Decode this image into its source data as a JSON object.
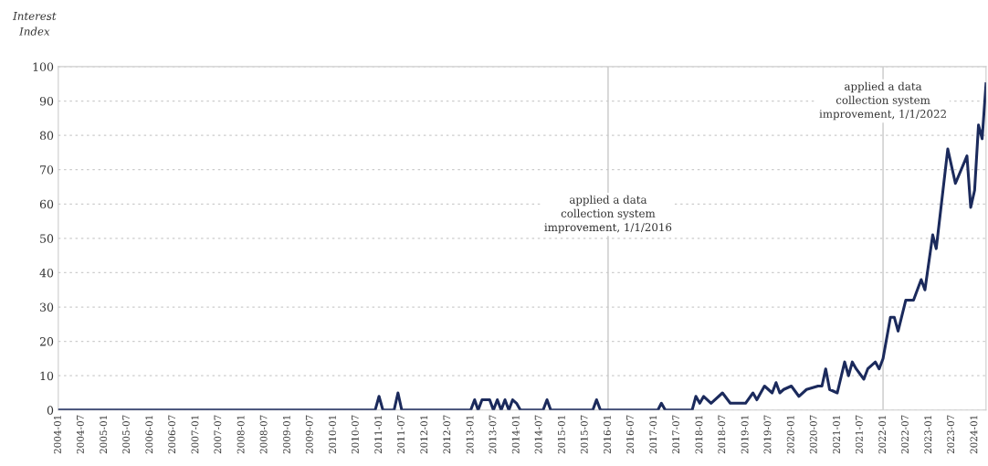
{
  "chart_data": {
    "type": "line",
    "ylabel": "Interest\nIndex",
    "x": [
      "2004-01",
      "2010-12",
      "2011-01",
      "2011-02",
      "2011-05",
      "2011-06",
      "2011-07",
      "2013-01",
      "2013-02",
      "2013-03",
      "2013-04",
      "2013-06",
      "2013-07",
      "2013-08",
      "2013-09",
      "2013-10",
      "2013-11",
      "2013-12",
      "2014-01",
      "2014-02",
      "2014-08",
      "2014-09",
      "2014-10",
      "2015-09",
      "2015-10",
      "2015-11",
      "2017-02",
      "2017-03",
      "2017-04",
      "2017-11",
      "2017-12",
      "2018-01",
      "2018-02",
      "2018-04",
      "2018-07",
      "2018-09",
      "2019-01",
      "2019-03",
      "2019-04",
      "2019-06",
      "2019-08",
      "2019-09",
      "2019-10",
      "2019-11",
      "2020-01",
      "2020-03",
      "2020-05",
      "2020-08",
      "2020-09",
      "2020-10",
      "2020-11",
      "2021-01",
      "2021-03",
      "2021-04",
      "2021-05",
      "2021-06",
      "2021-08",
      "2021-09",
      "2021-11",
      "2021-12",
      "2022-01",
      "2022-03",
      "2022-04",
      "2022-05",
      "2022-07",
      "2022-09",
      "2022-11",
      "2022-12",
      "2023-02",
      "2023-03",
      "2023-06",
      "2023-08",
      "2023-11",
      "2023-12",
      "2024-01",
      "2024-02",
      "2024-03",
      "2024-04"
    ],
    "series": [
      {
        "color": "#1b2a5c",
        "values": [
          0,
          0,
          4,
          0,
          0,
          5,
          0,
          0,
          3,
          0,
          3,
          3,
          0,
          3,
          0,
          3,
          0,
          3,
          2,
          0,
          0,
          3,
          0,
          0,
          3,
          0,
          0,
          2,
          0,
          0,
          4,
          2,
          4,
          2,
          5,
          2,
          2,
          5,
          3,
          7,
          5,
          8,
          5,
          6,
          7,
          4,
          6,
          7,
          7,
          12,
          6,
          5,
          14,
          10,
          14,
          12,
          9,
          12,
          14,
          12,
          15,
          27,
          27,
          23,
          32,
          32,
          38,
          35,
          51,
          47,
          76,
          66,
          74,
          59,
          64,
          83,
          79,
          95
        ]
      }
    ],
    "xlim": [
      "2004-01",
      "2024-04"
    ],
    "xticks": [
      "2004-01",
      "2004-07",
      "2005-01",
      "2005-07",
      "2006-01",
      "2006-07",
      "2007-01",
      "2007-07",
      "2008-01",
      "2008-07",
      "2009-01",
      "2009-07",
      "2010-01",
      "2010-07",
      "2011-01",
      "2011-07",
      "2012-01",
      "2012-07",
      "2013-01",
      "2013-07",
      "2014-01",
      "2014-07",
      "2015-01",
      "2015-07",
      "2016-01",
      "2016-07",
      "2017-01",
      "2017-07",
      "2018-01",
      "2018-07",
      "2019-01",
      "2019-07",
      "2020-01",
      "2020-07",
      "2021-01",
      "2021-07",
      "2022-01",
      "2022-07",
      "2023-01",
      "2023-07",
      "2024-01"
    ],
    "ylim": [
      0,
      100
    ],
    "yticks": [
      0,
      10,
      20,
      30,
      40,
      50,
      60,
      70,
      80,
      90,
      100
    ],
    "grid": "y",
    "line_style": "solid",
    "marker": "none",
    "ref_lines": [
      {
        "axis": "x",
        "value": "2016-01",
        "label": "applied a data\ncollection system\nimprovement, 1/1/2016",
        "color": "#c8c8c8"
      },
      {
        "axis": "x",
        "value": "2022-01",
        "label": "applied a data\ncollection system\nimprovement, 1/1/2022",
        "color": "#c8c8c8"
      }
    ]
  }
}
